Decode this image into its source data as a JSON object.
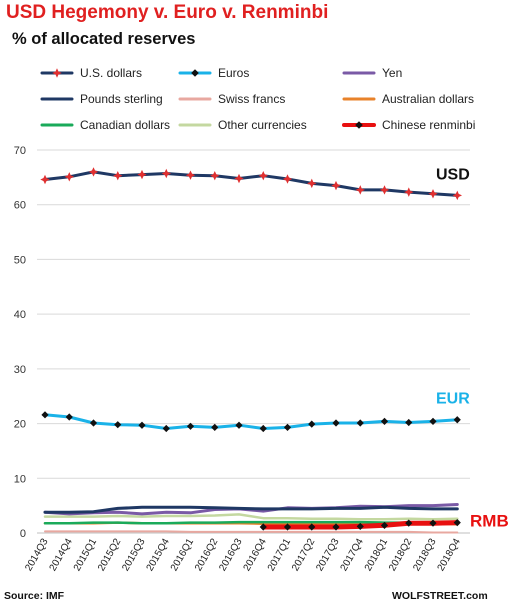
{
  "chart_data": {
    "type": "line",
    "title": "USD Hegemony v. Euro v. Renminbi",
    "subtitle": "% of allocated reserves",
    "source": "Source: IMF",
    "credit": "WOLFSTREET.com",
    "ylim": [
      0,
      70
    ],
    "yticks": [
      0,
      10,
      20,
      30,
      40,
      50,
      60,
      70
    ],
    "grid": true,
    "legend_position": "top",
    "categories": [
      "2014Q3",
      "2014Q4",
      "2015Q1",
      "2015Q2",
      "2015Q3",
      "2015Q4",
      "2016Q1",
      "2016Q2",
      "2016Q3",
      "2016Q4",
      "2017Q1",
      "2017Q2",
      "2017Q3",
      "2017Q4",
      "2018Q1",
      "2018Q2",
      "2018Q3",
      "2018Q4"
    ],
    "series": [
      {
        "name": "U.S. dollars",
        "color": "#1f3864",
        "marker_color": "#e03030",
        "marker": "star",
        "values": [
          64.6,
          65.1,
          66.0,
          65.3,
          65.5,
          65.7,
          65.4,
          65.3,
          64.8,
          65.3,
          64.7,
          63.9,
          63.5,
          62.7,
          62.7,
          62.3,
          62.0,
          61.7
        ]
      },
      {
        "name": "Euros",
        "color": "#1ab2e8",
        "marker_color": "#111111",
        "marker": "diamond",
        "values": [
          21.6,
          21.2,
          20.1,
          19.8,
          19.7,
          19.1,
          19.5,
          19.3,
          19.7,
          19.1,
          19.3,
          19.9,
          20.1,
          20.1,
          20.4,
          20.2,
          20.4,
          20.7
        ]
      },
      {
        "name": "Yen",
        "color": "#7a5aa6",
        "marker": "none",
        "values": [
          3.8,
          3.5,
          3.7,
          3.8,
          3.5,
          3.8,
          3.7,
          4.3,
          4.4,
          4.0,
          4.6,
          4.5,
          4.6,
          4.9,
          4.8,
          5.0,
          5.0,
          5.2
        ]
      },
      {
        "name": "Pounds sterling",
        "color": "#1f3864",
        "marker": "none",
        "values": [
          3.8,
          3.8,
          3.9,
          4.5,
          4.7,
          4.7,
          4.7,
          4.6,
          4.5,
          4.4,
          4.4,
          4.4,
          4.5,
          4.5,
          4.7,
          4.5,
          4.4,
          4.4
        ]
      },
      {
        "name": "Swiss francs",
        "color": "#e8a8a0",
        "marker": "none",
        "values": [
          0.3,
          0.3,
          0.3,
          0.3,
          0.3,
          0.3,
          0.2,
          0.2,
          0.2,
          0.2,
          0.2,
          0.2,
          0.2,
          0.2,
          0.2,
          0.2,
          0.1,
          0.1
        ]
      },
      {
        "name": "Australian dollars",
        "color": "#e8822a",
        "marker": "none",
        "values": [
          1.8,
          1.8,
          1.8,
          1.9,
          1.8,
          1.8,
          1.8,
          1.8,
          1.8,
          1.7,
          1.8,
          1.8,
          1.8,
          1.8,
          1.7,
          1.7,
          1.7,
          1.6
        ]
      },
      {
        "name": "Canadian dollars",
        "color": "#1aaa5a",
        "marker": "none",
        "values": [
          1.8,
          1.8,
          1.9,
          1.9,
          1.8,
          1.8,
          1.9,
          1.9,
          2.0,
          2.0,
          2.0,
          2.0,
          2.0,
          2.0,
          1.9,
          1.9,
          1.9,
          1.8
        ]
      },
      {
        "name": "Other currencies",
        "color": "#c4d8a0",
        "marker": "none",
        "values": [
          3.0,
          3.0,
          3.0,
          3.1,
          3.0,
          3.1,
          3.1,
          3.2,
          3.4,
          2.7,
          2.7,
          2.6,
          2.6,
          2.5,
          2.5,
          2.6,
          2.5,
          2.6
        ]
      },
      {
        "name": "Chinese renminbi",
        "color": "#e81010",
        "marker_color": "#111111",
        "marker": "diamond",
        "values": [
          null,
          null,
          null,
          null,
          null,
          null,
          null,
          null,
          null,
          1.1,
          1.1,
          1.1,
          1.1,
          1.2,
          1.4,
          1.8,
          1.8,
          1.9
        ]
      }
    ],
    "annotations": [
      {
        "text": "USD",
        "color": "#111111",
        "series": "U.S. dollars"
      },
      {
        "text": "EUR",
        "color": "#1ab2e8",
        "series": "Euros"
      },
      {
        "text": "RMB",
        "color": "#e81010",
        "series": "Chinese renminbi"
      }
    ]
  }
}
